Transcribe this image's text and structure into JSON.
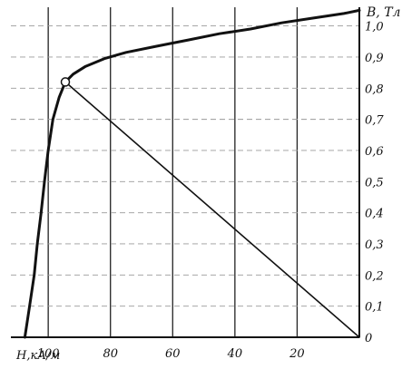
{
  "chart_data": {
    "type": "line",
    "xlabel": "H,кА/м",
    "ylabel": "B, Тл",
    "x_ticks": [
      "100",
      "80",
      "60",
      "40",
      "20",
      "0"
    ],
    "y_ticks": [
      "0",
      "0,1",
      "0,2",
      "0,3",
      "0,4",
      "0,5",
      "0,6",
      "0,7",
      "0,8",
      "0,9",
      "1,0"
    ],
    "xlim": [
      0,
      112
    ],
    "x_reversed": true,
    "ylim": [
      0,
      1.06
    ],
    "grid": true,
    "series": [
      {
        "style": "curve",
        "points": [
          [
            107.5,
            0
          ],
          [
            106,
            0.1
          ],
          [
            104.5,
            0.2
          ],
          [
            103.5,
            0.3
          ],
          [
            102.3,
            0.4
          ],
          [
            101.2,
            0.5
          ],
          [
            100,
            0.6
          ],
          [
            98.5,
            0.7
          ],
          [
            96.5,
            0.77
          ],
          [
            94.5,
            0.82
          ],
          [
            92,
            0.845
          ],
          [
            88,
            0.87
          ],
          [
            82,
            0.895
          ],
          [
            75,
            0.915
          ],
          [
            65,
            0.935
          ],
          [
            55,
            0.955
          ],
          [
            45,
            0.975
          ],
          [
            35,
            0.99
          ],
          [
            25,
            1.01
          ],
          [
            15,
            1.025
          ],
          [
            5,
            1.04
          ],
          [
            0,
            1.05
          ]
        ]
      },
      {
        "style": "load-line",
        "points": [
          [
            94.5,
            0.82
          ],
          [
            0,
            0
          ]
        ]
      }
    ],
    "marker": {
      "x": 94.5,
      "y": 0.82
    }
  }
}
